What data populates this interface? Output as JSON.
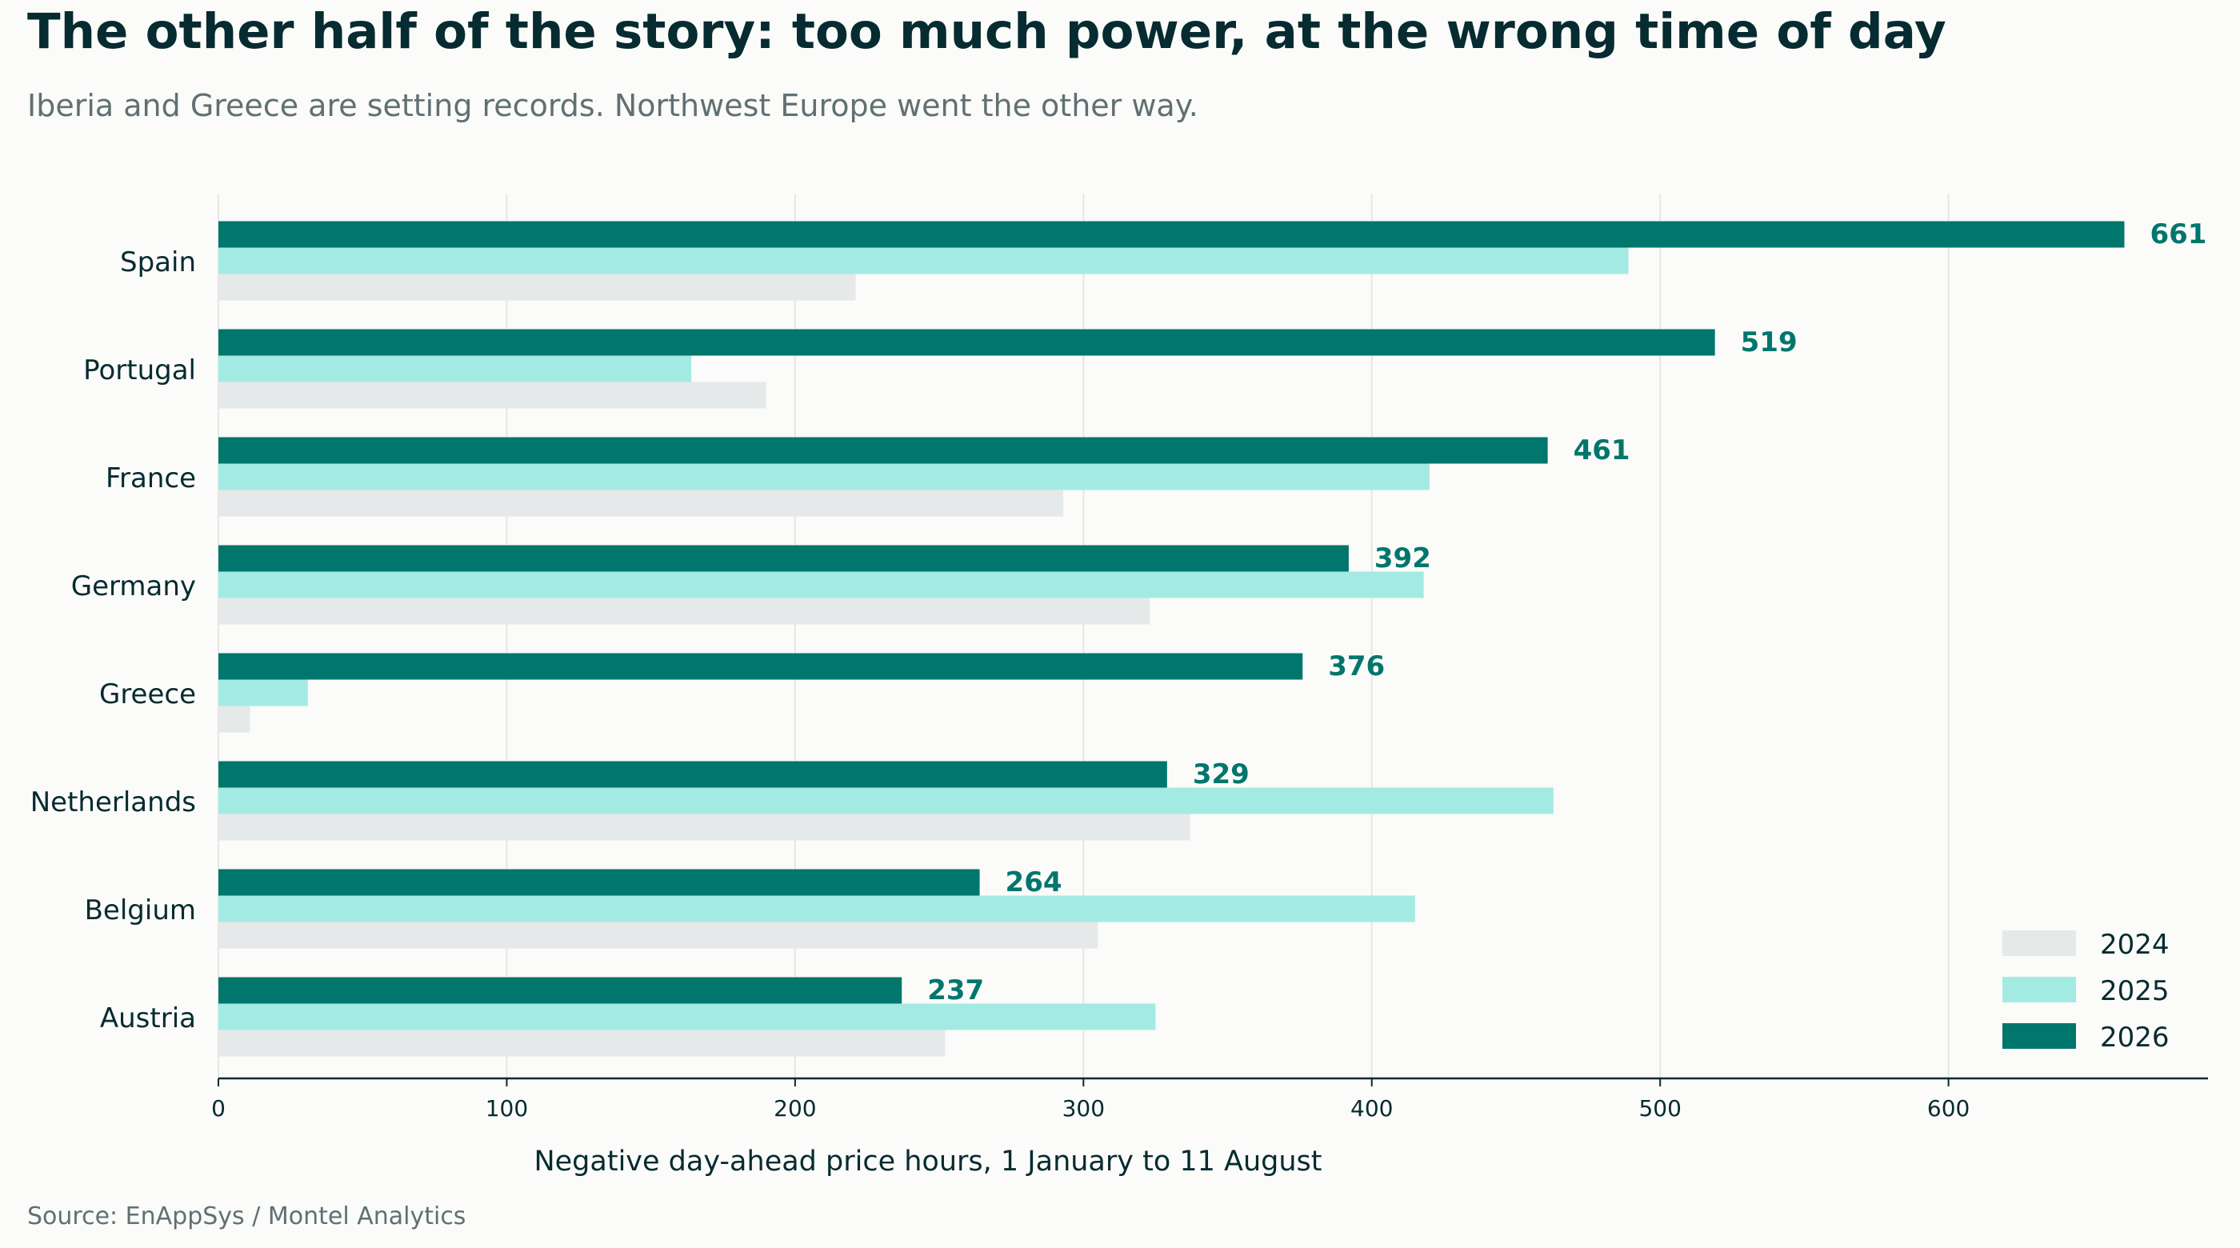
{
  "header": {
    "title": "The other half of the story: too much power, at the wrong time of day",
    "subtitle": "Iberia and Greece are setting records. Northwest Europe went the other way."
  },
  "footer": {
    "source": "Source: EnAppSys / Montel Analytics"
  },
  "colors": {
    "2024": "#e6e9ea",
    "2025": "#a3ebe2",
    "2026": "#00766c",
    "grid": "#e6e6e4",
    "axis": "#062b30",
    "text": "#062b30",
    "muted": "#607073"
  },
  "chart_data": {
    "type": "bar",
    "orientation": "horizontal",
    "categories": [
      "Spain",
      "Portugal",
      "France",
      "Germany",
      "Greece",
      "Netherlands",
      "Belgium",
      "Austria"
    ],
    "series": [
      {
        "name": "2024",
        "values": [
          221,
          190,
          293,
          323,
          11,
          337,
          305,
          252
        ]
      },
      {
        "name": "2025",
        "values": [
          489,
          164,
          420,
          418,
          31,
          463,
          415,
          325
        ]
      },
      {
        "name": "2026",
        "values": [
          661,
          519,
          461,
          392,
          376,
          329,
          264,
          237
        ]
      }
    ],
    "data_labels_series": "2026",
    "xlabel": "Negative day-ahead price hours, 1 January to 11 August",
    "ylabel": "",
    "xlim": [
      0,
      690
    ],
    "xticks": [
      0,
      100,
      200,
      300,
      400,
      500,
      600
    ],
    "grid": "vertical",
    "legend_position": "bottom-right"
  }
}
